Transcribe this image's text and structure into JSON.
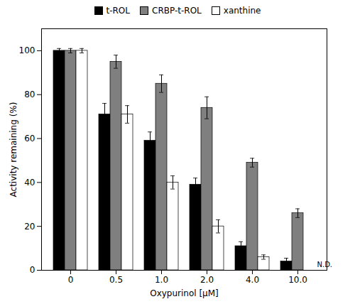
{
  "chart_data": {
    "type": "bar",
    "xlabel": "Oxypurinol [μM]",
    "ylabel": "Activity remaining (%)",
    "categories": [
      "0",
      "0.5",
      "1.0",
      "2.0",
      "4.0",
      "10.0"
    ],
    "series": [
      {
        "name": "t-ROL",
        "color": "#000000",
        "values": [
          100,
          71,
          59,
          39,
          11,
          4
        ],
        "errors": [
          1,
          5,
          4,
          3,
          2,
          1.5
        ]
      },
      {
        "name": "CRBP-t-ROL",
        "color": "#7f7f7f",
        "values": [
          100,
          95,
          85,
          74,
          49,
          26
        ],
        "errors": [
          1,
          3,
          4,
          5,
          2,
          2
        ]
      },
      {
        "name": "xanthine",
        "color": "#ffffff",
        "values": [
          100,
          71,
          40,
          20,
          6,
          0
        ],
        "errors": [
          1,
          4,
          3,
          3,
          1,
          0
        ]
      }
    ],
    "annotations": [
      {
        "text": "N.D.",
        "category": "10.0",
        "series": "xanthine",
        "y": 1.5
      }
    ],
    "ylim": [
      0,
      110
    ],
    "yticks": [
      0,
      20,
      40,
      60,
      80,
      100
    ],
    "grid": false,
    "legend": "top"
  }
}
